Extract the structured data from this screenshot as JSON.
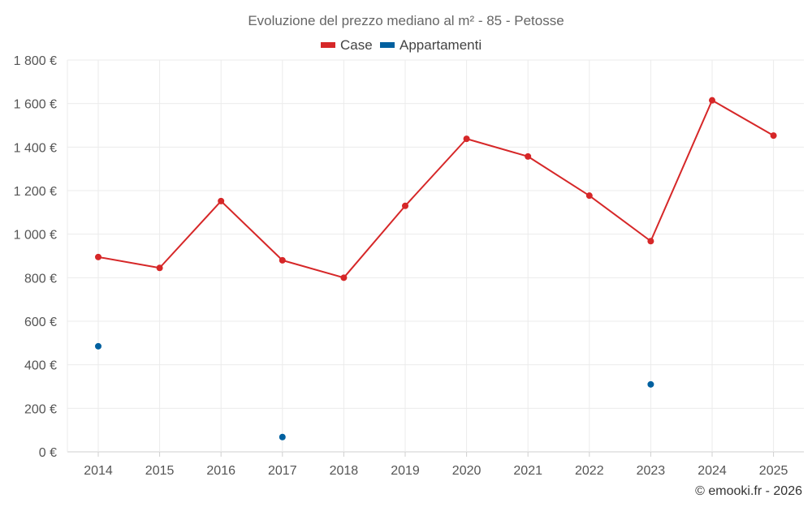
{
  "chart_data": {
    "type": "line",
    "title": "Evoluzione del prezzo mediano al m² - 85 - Petosse",
    "categories": [
      "2014",
      "2015",
      "2016",
      "2017",
      "2018",
      "2019",
      "2020",
      "2021",
      "2022",
      "2023",
      "2024",
      "2025"
    ],
    "series": [
      {
        "name": "Case",
        "color": "#d62728",
        "mode": "line",
        "values": [
          895,
          845,
          1152,
          880,
          800,
          1130,
          1438,
          1357,
          1177,
          968,
          1615,
          1453
        ]
      },
      {
        "name": "Appartamenti",
        "color": "#00609f",
        "mode": "markers",
        "values": [
          485,
          null,
          null,
          68,
          null,
          null,
          null,
          null,
          null,
          310,
          null,
          null
        ]
      }
    ],
    "y_ticks": [
      0,
      200,
      400,
      600,
      800,
      1000,
      1200,
      1400,
      1600,
      1800
    ],
    "y_tick_labels": [
      "0 €",
      "200 €",
      "400 €",
      "600 €",
      "800 €",
      "1 000 €",
      "1 200 €",
      "1 400 €",
      "1 600 €",
      "1 800 €"
    ],
    "ylim": [
      0,
      1800
    ],
    "xlabel": "",
    "ylabel": "",
    "grid": true,
    "legend_position": "top-center"
  },
  "credit": "© emooki.fr - 2026"
}
